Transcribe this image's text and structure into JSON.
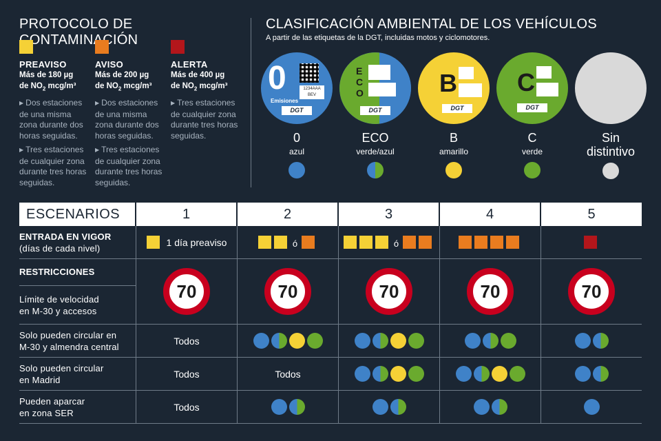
{
  "protocol": {
    "title": "PROTOCOLO DE CONTAMINACIÓN",
    "levels": [
      {
        "name": "PREAVISO",
        "color": "#f5d136",
        "thr1": "Más de 180 µg",
        "thr2a": "de NO",
        "thr2sub": "2",
        "thr2b": " mcg/m³",
        "b1": "Dos estaciones de una misma zona durante dos horas seguidas.",
        "b2": "Tres estaciones de cualquier zona durante tres horas seguidas."
      },
      {
        "name": "AVISO",
        "color": "#e97c1f",
        "thr1": "Más de 200 µg",
        "thr2a": "de NO",
        "thr2sub": "2",
        "thr2b": " mcg/m³",
        "b1": "Dos estaciones de una misma zona durante dos horas seguidas.",
        "b2": "Tres estaciones de cualquier zona durante tres horas seguidas."
      },
      {
        "name": "ALERTA",
        "color": "#b3161b",
        "thr1": "Más de 400  µg",
        "thr2a": "de NO",
        "thr2sub": "2",
        "thr2b": " mcg/m³",
        "b1": "Tres estaciones de cualquier zona durante tres horas seguidas.",
        "b2": ""
      }
    ]
  },
  "classification": {
    "title": "CLASIFICACIÓN AMBIENTAL DE LOS VEHÍCULOS",
    "subtitle": "A partir de las etiquetas de la DGT, incluidas motos y ciclomotores.",
    "tag0": {
      "big": "0",
      "emis": "Emisiones",
      "plate1": "1234AAA",
      "plate2": "BEV",
      "dgt": "DGT"
    },
    "tag_eco": {
      "dgt": "DGT",
      "l1": "E",
      "l2": "C",
      "l3": "O"
    },
    "tag_b": {
      "big": "B",
      "dgt": "DGT"
    },
    "tag_c": {
      "big": "C",
      "dgt": "DGT"
    },
    "tags": [
      {
        "name": "0",
        "color_name": "azul"
      },
      {
        "name": "ECO",
        "color_name": "verde/azul"
      },
      {
        "name": "B",
        "color_name": "amarillo"
      },
      {
        "name": "C",
        "color_name": "verde"
      },
      {
        "name": "Sin",
        "name2": "distintivo"
      }
    ]
  },
  "colors": {
    "blue": "#3f82c8",
    "green": "#6aaa2e",
    "yellow": "#f5d136",
    "grey": "#d9d9d9",
    "preaviso": "#f5d136",
    "aviso": "#e97c1f",
    "alerta": "#b3161b",
    "sign_red": "#c8001e"
  },
  "table": {
    "header": [
      "ESCENARIOS",
      "1",
      "2",
      "3",
      "4",
      "5"
    ],
    "entry": {
      "label1": "ENTRADA EN VIGOR",
      "label2": "(días de cada nivel)",
      "s1_text": "1 día preaviso",
      "or": "ó"
    },
    "restr": {
      "label": "RESTRICCIONES",
      "speed_label1": "Límite de velocidad",
      "speed_label2": "en M-30 y accesos",
      "speed": "70"
    },
    "m30": {
      "label1": "Solo pueden circular en",
      "label2": "M-30 y almendra central",
      "s1": "Todos"
    },
    "madrid": {
      "label1": "Solo pueden circular",
      "label2": "en Madrid",
      "s1": "Todos",
      "s2": "Todos"
    },
    "ser": {
      "label1": "Pueden aparcar",
      "label2": "en zona SER",
      "s1": "Todos"
    }
  }
}
